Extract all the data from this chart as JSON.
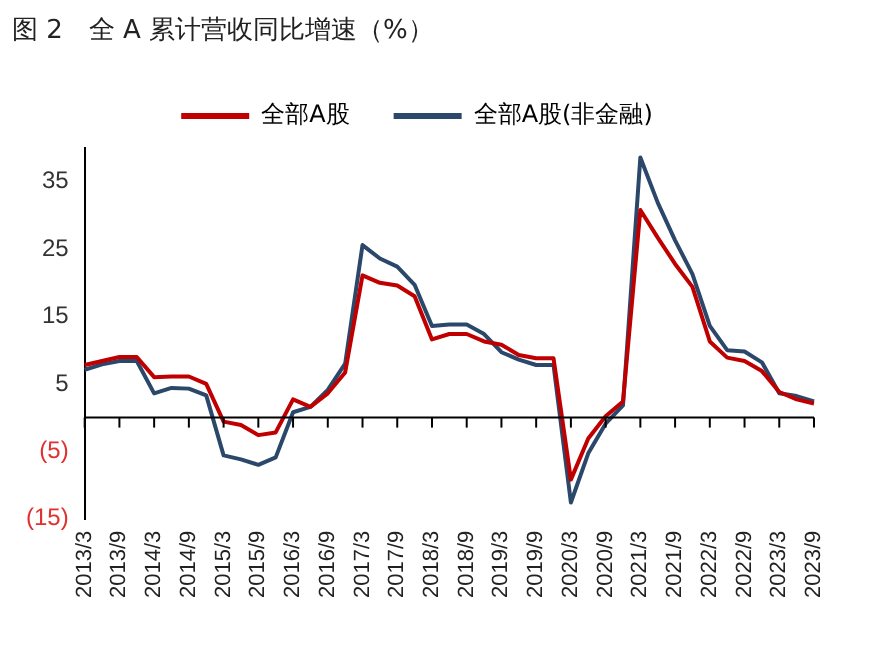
{
  "chart_data": {
    "type": "line",
    "title": "图 2　全 A 累计营收同比增速（%）",
    "categories": [
      "2013/3",
      null,
      "2013/9",
      null,
      "2014/3",
      null,
      "2014/9",
      null,
      "2015/3",
      null,
      "2015/9",
      null,
      "2016/3",
      null,
      "2016/9",
      null,
      "2017/3",
      null,
      "2017/9",
      null,
      "2018/3",
      null,
      "2018/9",
      null,
      "2019/3",
      null,
      "2019/9",
      null,
      "2020/3",
      null,
      "2020/9",
      null,
      "2021/3",
      null,
      "2021/9",
      null,
      "2022/3",
      null,
      "2022/9",
      null,
      "2023/3",
      null,
      "2023/9"
    ],
    "series": [
      {
        "name": "全部A股",
        "color": "#c00000",
        "values": [
          7.8,
          8.4,
          9.0,
          9.0,
          6.0,
          6.1,
          6.1,
          5.0,
          -0.6,
          -1.1,
          -2.6,
          -2.2,
          2.7,
          1.6,
          3.6,
          6.7,
          21.1,
          20.0,
          19.6,
          18.0,
          11.6,
          12.4,
          12.4,
          11.3,
          10.8,
          9.3,
          8.8,
          8.8,
          -9.2,
          -3.1,
          0.2,
          2.4,
          30.8,
          26.7,
          22.8,
          19.4,
          11.3,
          8.9,
          8.4,
          6.9,
          3.8,
          2.7,
          2.1
        ]
      },
      {
        "name": "全部A股(非金融)",
        "color": "#2b4769",
        "values": [
          7.1,
          7.9,
          8.4,
          8.4,
          3.6,
          4.4,
          4.3,
          3.3,
          -5.6,
          -6.2,
          -7.0,
          -5.9,
          0.8,
          1.6,
          4.1,
          8.0,
          25.6,
          23.6,
          22.4,
          19.7,
          13.6,
          13.8,
          13.8,
          12.4,
          9.7,
          8.6,
          7.8,
          7.8,
          -12.6,
          -5.3,
          -0.9,
          1.8,
          38.6,
          31.9,
          26.3,
          21.3,
          13.6,
          10.0,
          9.8,
          8.2,
          3.6,
          3.2,
          2.4
        ]
      }
    ],
    "ylim": [
      -15,
      40
    ],
    "yticks": [
      {
        "value": -15,
        "label": "(15)"
      },
      {
        "value": -5,
        "label": "(5)"
      },
      5,
      15,
      25,
      35
    ],
    "grid": false,
    "legend": "top",
    "marker": "none",
    "line_style": "solid"
  }
}
